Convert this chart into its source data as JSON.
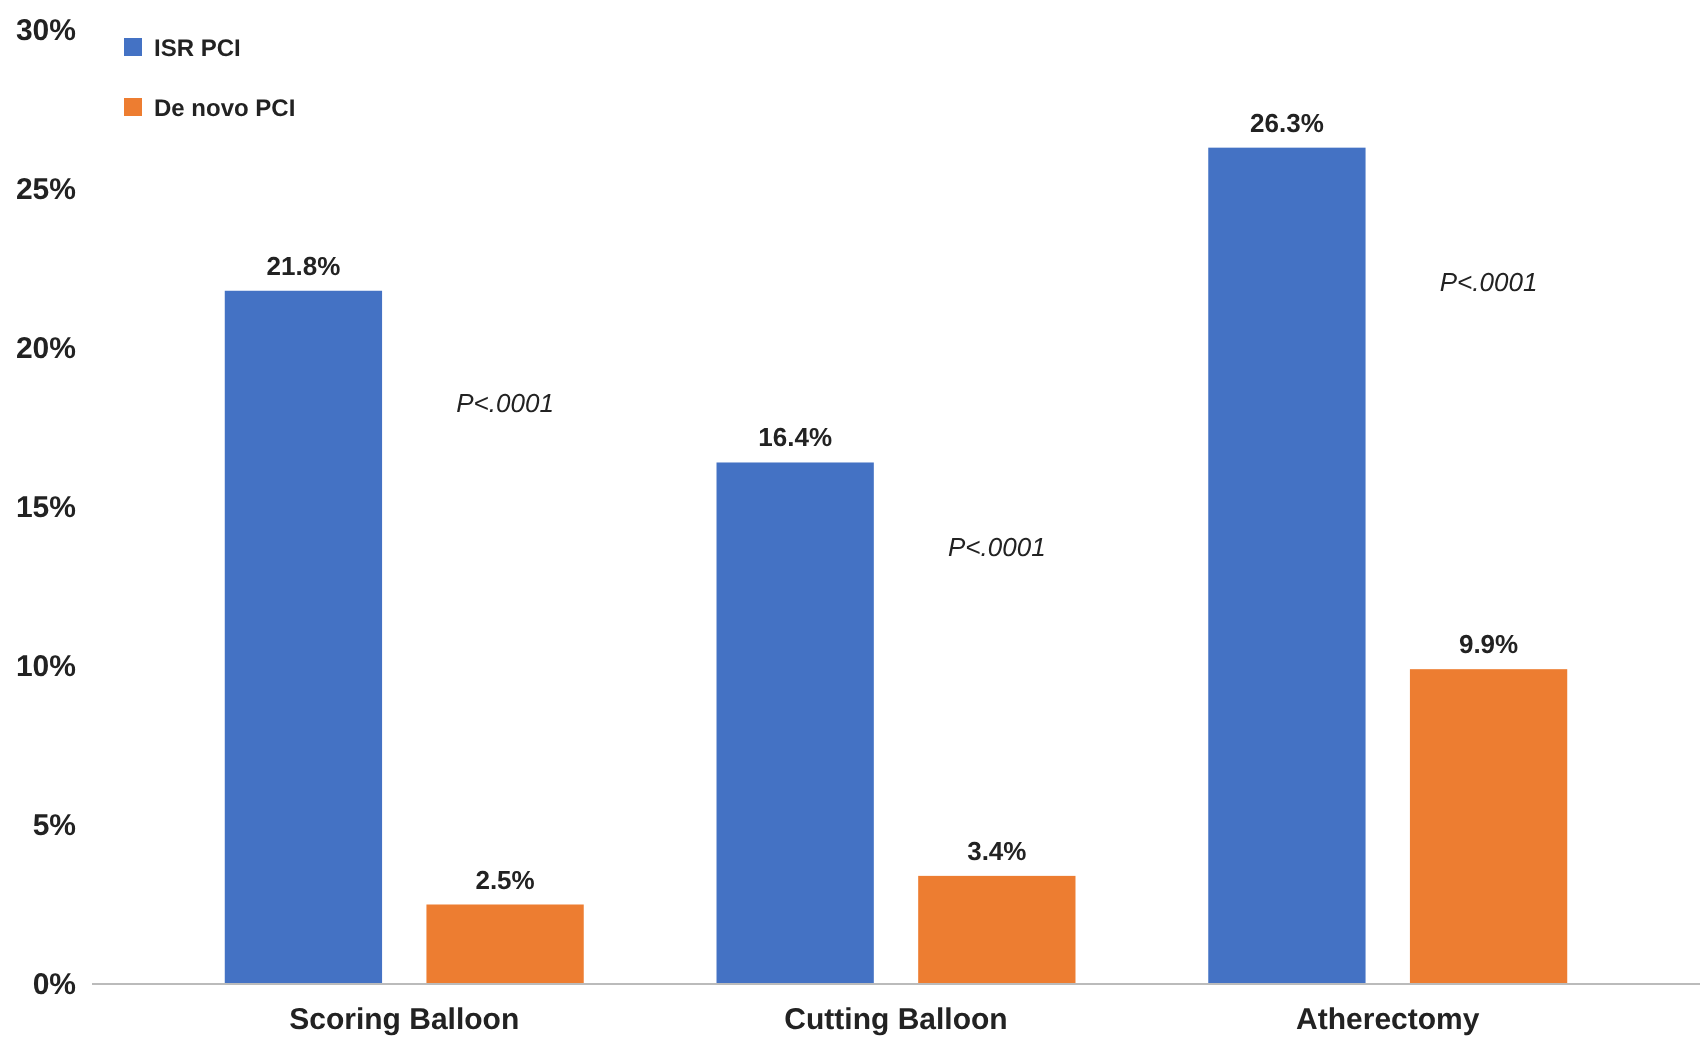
{
  "chart_data": {
    "type": "bar",
    "categories": [
      "Scoring Balloon",
      "Cutting Balloon",
      "Atherectomy"
    ],
    "series": [
      {
        "name": "ISR PCI",
        "color": "#4472c4",
        "values": [
          21.8,
          16.4,
          26.3
        ],
        "value_labels": [
          "21.8%",
          "16.4%",
          "26.3%"
        ]
      },
      {
        "name": "De novo PCI",
        "color": "#ed7d31",
        "values": [
          2.5,
          3.4,
          9.9
        ],
        "value_labels": [
          "2.5%",
          "3.4%",
          "9.9%"
        ]
      }
    ],
    "ylim": [
      0,
      30
    ],
    "yticks": [
      {
        "value": 0,
        "label": "0%"
      },
      {
        "value": 5,
        "label": "5%"
      },
      {
        "value": 10,
        "label": "10%"
      },
      {
        "value": 15,
        "label": "15%"
      },
      {
        "value": 20,
        "label": "20%"
      },
      {
        "value": 25,
        "label": "25%"
      },
      {
        "value": 30,
        "label": "30%"
      }
    ],
    "annotations": [
      "P<.0001",
      "P<.0001",
      "P<.0001"
    ],
    "grid": false,
    "legend": "top left"
  }
}
